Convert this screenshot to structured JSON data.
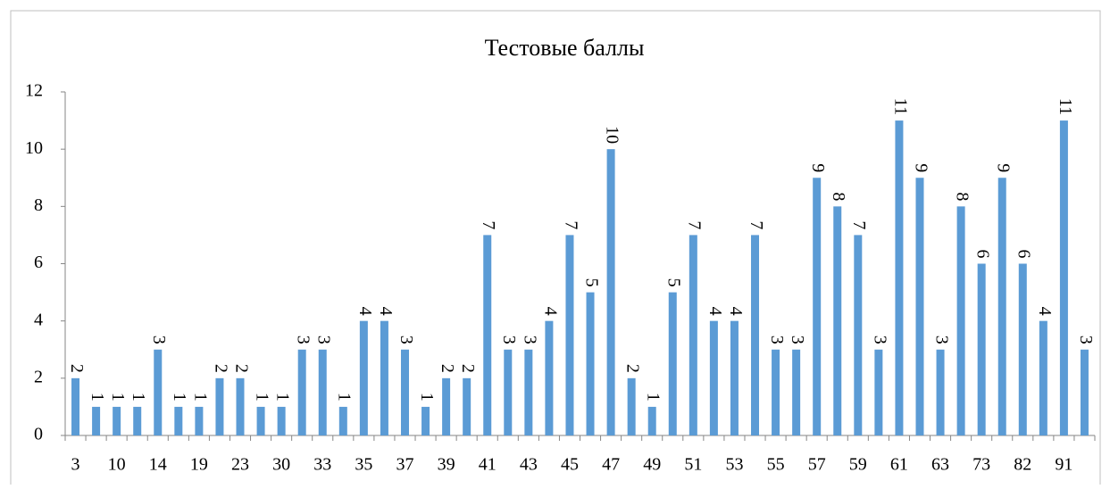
{
  "chart_data": {
    "type": "bar",
    "title": "Тестовые баллы",
    "categories": [
      "3",
      null,
      "10",
      null,
      "14",
      null,
      "19",
      null,
      "23",
      null,
      "30",
      null,
      "33",
      null,
      "35",
      null,
      "37",
      null,
      "39",
      null,
      "41",
      null,
      "43",
      null,
      "45",
      null,
      "47",
      null,
      "49",
      null,
      "51",
      null,
      "53",
      null,
      "55",
      null,
      "57",
      null,
      "59",
      null,
      "61",
      null,
      "63",
      null,
      "73",
      null,
      "82",
      null,
      "91",
      null
    ],
    "values": [
      2,
      1,
      1,
      1,
      3,
      1,
      1,
      2,
      2,
      1,
      1,
      3,
      3,
      1,
      4,
      4,
      3,
      1,
      2,
      2,
      7,
      3,
      3,
      4,
      7,
      5,
      10,
      2,
      1,
      5,
      7,
      4,
      4,
      7,
      3,
      3,
      9,
      8,
      7,
      3,
      11,
      9,
      3,
      8,
      6,
      9,
      6,
      4,
      11,
      3
    ],
    "color": "#5b9bd5",
    "ylim": [
      0,
      12
    ],
    "yticks": [
      0,
      2,
      4,
      6,
      8,
      10,
      12
    ],
    "grid": false
  }
}
